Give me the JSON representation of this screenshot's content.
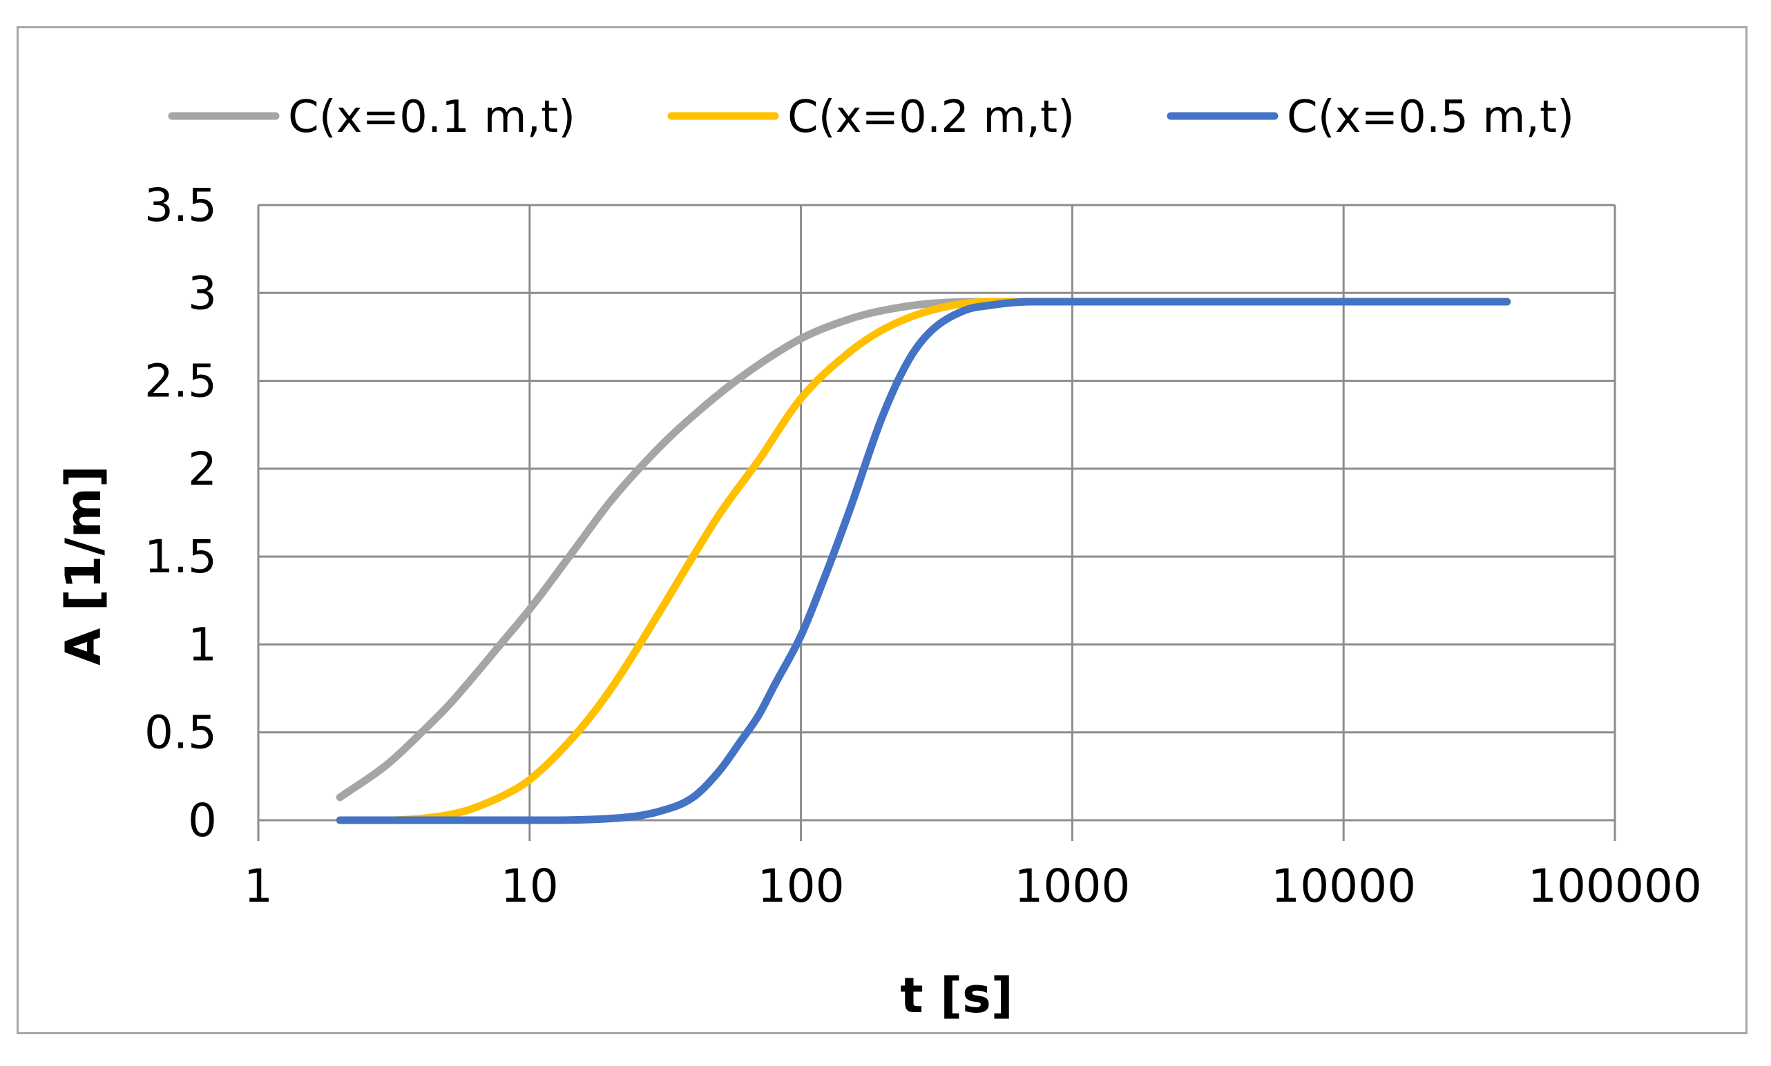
{
  "chart_data": {
    "type": "line",
    "xscale": "log",
    "title": "",
    "xlabel": "t [s]",
    "ylabel": "A [1/m]",
    "xlim": [
      1,
      100000
    ],
    "ylim": [
      0,
      3.5
    ],
    "x_ticks": [
      1,
      10,
      100,
      1000,
      10000,
      100000
    ],
    "x_tick_labels": [
      "1",
      "10",
      "100",
      "1000",
      "10000",
      "100000"
    ],
    "y_ticks": [
      0,
      0.5,
      1,
      1.5,
      2,
      2.5,
      3,
      3.5
    ],
    "y_tick_labels": [
      "0",
      "0.5",
      "1",
      "1.5",
      "2",
      "2.5",
      "3",
      "3.5"
    ],
    "grid": true,
    "legend_position": "top",
    "series": [
      {
        "name": "C(x=0.1 m,t)",
        "color": "#a5a5a5",
        "x": [
          2,
          3,
          4,
          5,
          6,
          8,
          10,
          14,
          20,
          30,
          40,
          60,
          100,
          150,
          200,
          300,
          500,
          700,
          1000,
          40000
        ],
        "values": [
          0.13,
          0.32,
          0.5,
          0.65,
          0.79,
          1.02,
          1.2,
          1.5,
          1.82,
          2.12,
          2.3,
          2.52,
          2.74,
          2.85,
          2.9,
          2.94,
          2.95,
          2.95,
          2.95,
          2.95
        ]
      },
      {
        "name": "C(x=0.2 m,t)",
        "color": "#ffc000",
        "x": [
          2,
          3,
          4,
          5,
          6,
          7,
          8,
          10,
          15,
          20,
          30,
          40,
          50,
          70,
          100,
          150,
          200,
          300,
          500,
          700,
          1000,
          40000
        ],
        "values": [
          0.0,
          0.0,
          0.01,
          0.03,
          0.06,
          0.1,
          0.14,
          0.23,
          0.5,
          0.75,
          1.18,
          1.5,
          1.74,
          2.05,
          2.4,
          2.66,
          2.79,
          2.9,
          2.95,
          2.95,
          2.95,
          2.95
        ]
      },
      {
        "name": "C(x=0.5 m,t)",
        "color": "#4472c4",
        "x": [
          2,
          5,
          10,
          20,
          30,
          40,
          50,
          60,
          70,
          80,
          100,
          120,
          150,
          200,
          250,
          300,
          400,
          500,
          700,
          1000,
          40000
        ],
        "values": [
          0.0,
          0.0,
          0.0,
          0.01,
          0.05,
          0.13,
          0.28,
          0.45,
          0.6,
          0.77,
          1.05,
          1.35,
          1.75,
          2.3,
          2.62,
          2.78,
          2.9,
          2.93,
          2.95,
          2.95,
          2.95
        ]
      }
    ]
  }
}
